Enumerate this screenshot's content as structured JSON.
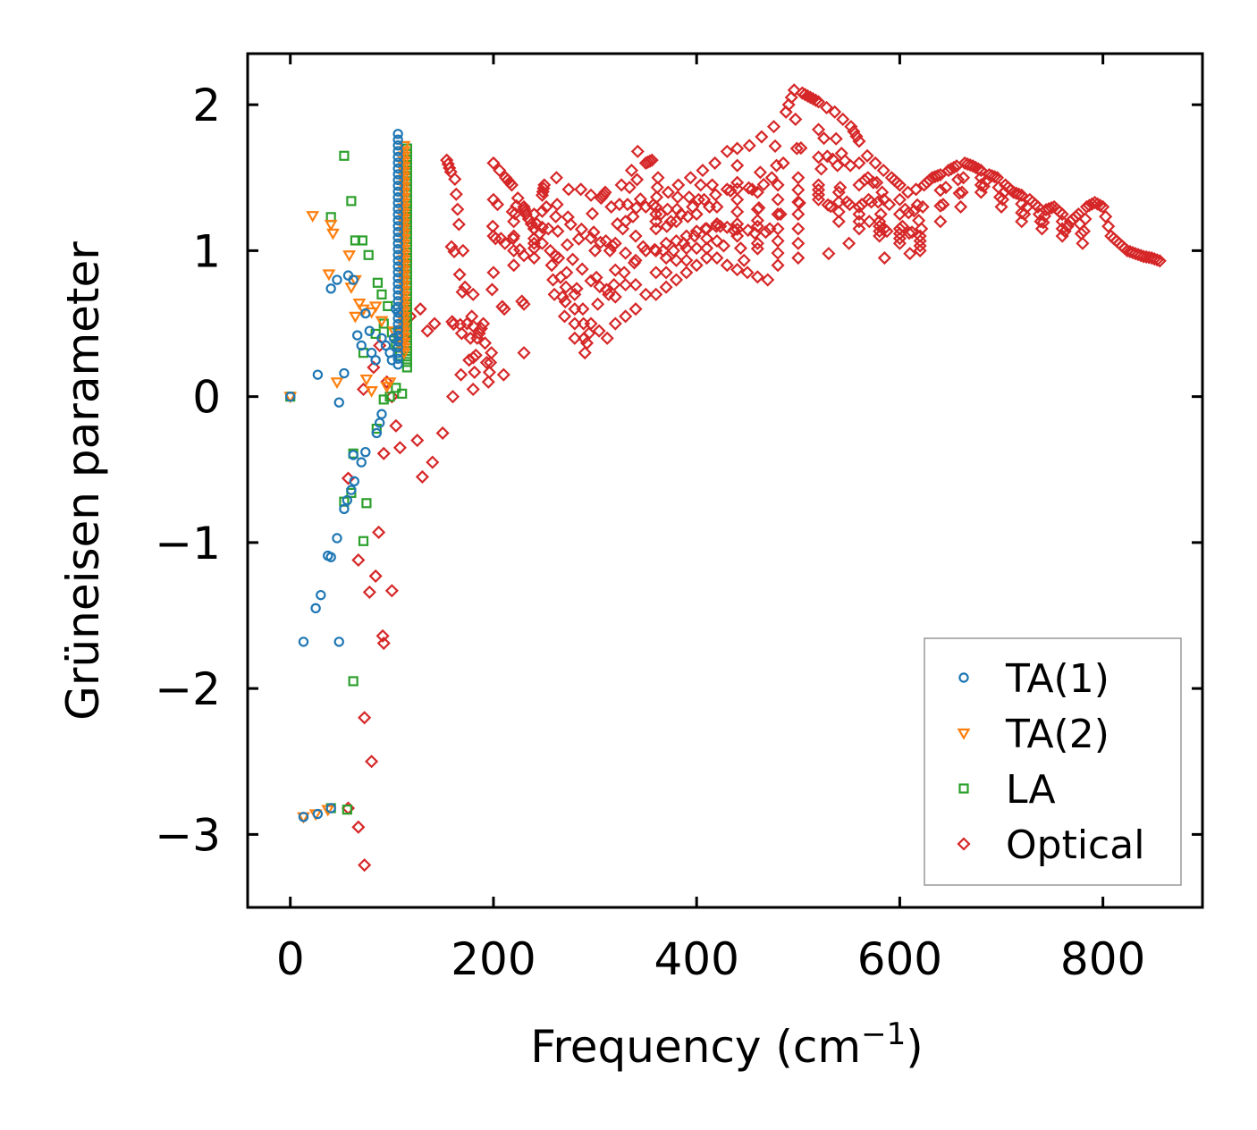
{
  "chart_data": {
    "type": "scatter",
    "title": "",
    "xlabel": "Frequency (cm",
    "xlabel_sup": "−1",
    "xlabel_close": ")",
    "ylabel": "Grüneisen parameter",
    "xlim": [
      -42,
      898
    ],
    "ylim": [
      -3.5,
      2.35
    ],
    "xticks": [
      0,
      200,
      400,
      600,
      800
    ],
    "yticks": [
      2,
      1,
      0,
      -1,
      -2,
      -3
    ],
    "xtick_labels": [
      "0",
      "200",
      "400",
      "600",
      "800"
    ],
    "ytick_labels": [
      "2",
      "1",
      "0",
      "−1",
      "−2",
      "−3"
    ],
    "legend_position": "lower-right",
    "series": [
      {
        "name": "TA(1)",
        "color": "#1f77b4",
        "marker": "circle",
        "points": [
          [
            0,
            0
          ],
          [
            13,
            -2.88
          ],
          [
            27,
            -2.86
          ],
          [
            40,
            -2.82
          ],
          [
            13,
            -1.68
          ],
          [
            25,
            -1.45
          ],
          [
            30,
            -1.36
          ],
          [
            48,
            -1.68
          ],
          [
            37,
            -1.09
          ],
          [
            40,
            -1.1
          ],
          [
            46,
            -0.97
          ],
          [
            53,
            -0.77
          ],
          [
            56,
            -0.71
          ],
          [
            60,
            -0.64
          ],
          [
            63,
            -0.58
          ],
          [
            62,
            -0.4
          ],
          [
            70,
            -0.45
          ],
          [
            74,
            -0.38
          ],
          [
            85,
            -0.25
          ],
          [
            88,
            -0.18
          ],
          [
            90,
            -0.12
          ],
          [
            48,
            -0.04
          ],
          [
            27,
            0.15
          ],
          [
            53,
            0.16
          ],
          [
            40,
            0.74
          ],
          [
            46,
            0.8
          ],
          [
            62,
            0.8
          ],
          [
            57,
            0.83
          ],
          [
            66,
            0.42
          ],
          [
            70,
            0.35
          ],
          [
            74,
            0.57
          ],
          [
            78,
            0.45
          ],
          [
            80,
            0.3
          ],
          [
            84,
            0.25
          ],
          [
            90,
            0.4
          ],
          [
            94,
            0.35
          ],
          [
            98,
            0.3
          ],
          [
            100,
            0.25
          ],
          [
            102,
            0.4
          ],
          [
            104,
            0.6
          ]
        ],
        "stem": {
          "x": 106,
          "y_min": 0.22,
          "y_max": 1.8
        }
      },
      {
        "name": "TA(2)",
        "color": "#ff7f0e",
        "marker": "triangle-down",
        "points": [
          [
            0,
            0
          ],
          [
            13,
            -2.88
          ],
          [
            25,
            -2.86
          ],
          [
            37,
            -2.83
          ],
          [
            22,
            1.24
          ],
          [
            40,
            1.18
          ],
          [
            42,
            1.12
          ],
          [
            38,
            0.84
          ],
          [
            58,
            0.97
          ],
          [
            60,
            0.75
          ],
          [
            64,
            0.8
          ],
          [
            68,
            0.64
          ],
          [
            72,
            0.6
          ],
          [
            64,
            0.55
          ],
          [
            80,
            0.58
          ],
          [
            84,
            0.62
          ],
          [
            90,
            0.52
          ],
          [
            46,
            0.1
          ],
          [
            75,
            0.12
          ],
          [
            80,
            0.04
          ],
          [
            95,
            0.07
          ],
          [
            98,
            0.1
          ],
          [
            102,
            0.45
          ],
          [
            108,
            0.35
          ]
        ],
        "stem": {
          "x": 112,
          "y_min": 0.3,
          "y_max": 1.72
        }
      },
      {
        "name": "LA",
        "color": "#2ca02c",
        "marker": "square",
        "points": [
          [
            0,
            0
          ],
          [
            40,
            -2.82
          ],
          [
            56,
            -2.83
          ],
          [
            62,
            -1.95
          ],
          [
            72,
            -0.99
          ],
          [
            75,
            -0.73
          ],
          [
            53,
            -0.72
          ],
          [
            60,
            -0.66
          ],
          [
            62,
            -0.39
          ],
          [
            85,
            -0.22
          ],
          [
            92,
            -0.02
          ],
          [
            98,
            0.0
          ],
          [
            104,
            0.06
          ],
          [
            110,
            0.02
          ],
          [
            53,
            1.65
          ],
          [
            60,
            1.34
          ],
          [
            40,
            1.23
          ],
          [
            64,
            1.07
          ],
          [
            71,
            1.07
          ],
          [
            77,
            0.97
          ],
          [
            86,
            0.78
          ],
          [
            90,
            0.7
          ],
          [
            72,
            0.3
          ],
          [
            84,
            0.43
          ],
          [
            92,
            0.5
          ],
          [
            96,
            0.62
          ],
          [
            100,
            0.44
          ],
          [
            104,
            0.36
          ],
          [
            108,
            0.28
          ],
          [
            112,
            0.5
          ]
        ],
        "stem": {
          "x": 115,
          "y_min": 0.2,
          "y_max": 1.7
        }
      },
      {
        "name": "Optical",
        "color": "#d62728",
        "marker": "diamond",
        "points": [
          [
            57,
            -2.82
          ],
          [
            67,
            -2.95
          ],
          [
            73,
            -3.21
          ],
          [
            73,
            -2.2
          ],
          [
            80,
            -2.5
          ],
          [
            67,
            -1.12
          ],
          [
            78,
            -1.34
          ],
          [
            84,
            -1.23
          ],
          [
            100,
            -1.33
          ],
          [
            91,
            -1.64
          ],
          [
            92,
            -1.69
          ],
          [
            87,
            -0.93
          ],
          [
            57,
            -0.56
          ],
          [
            92,
            -0.39
          ],
          [
            72,
            0.05
          ],
          [
            82,
            0.2
          ],
          [
            88,
            0.35
          ],
          [
            95,
            0.1
          ],
          [
            100,
            0.0
          ],
          [
            104,
            -0.2
          ],
          [
            108,
            -0.35
          ],
          [
            112,
            0.4
          ],
          [
            118,
            0.55
          ],
          [
            128,
            0.6
          ],
          [
            135,
            0.45
          ],
          [
            142,
            0.5
          ],
          [
            125,
            -0.3
          ],
          [
            130,
            -0.55
          ],
          [
            140,
            -0.45
          ],
          [
            150,
            -0.25
          ],
          [
            160,
            0.0
          ],
          [
            168,
            0.15
          ],
          [
            176,
            0.25
          ],
          [
            184,
            0.4
          ],
          [
            154,
            1.62
          ],
          [
            158,
            1.54
          ],
          [
            162,
            1.49
          ],
          [
            166,
            1.18
          ],
          [
            170,
            1.0
          ],
          [
            180,
            0.7
          ],
          [
            190,
            0.5
          ],
          [
            198,
            0.3
          ],
          [
            200,
            1.6
          ],
          [
            206,
            1.55
          ],
          [
            212,
            1.5
          ],
          [
            218,
            1.45
          ],
          [
            224,
            1.36
          ],
          [
            232,
            1.25
          ],
          [
            240,
            1.15
          ],
          [
            248,
            1.05
          ],
          [
            256,
            1.0
          ],
          [
            264,
            0.95
          ],
          [
            272,
            0.85
          ],
          [
            280,
            0.7
          ],
          [
            288,
            0.6
          ],
          [
            296,
            0.5
          ],
          [
            304,
            0.45
          ],
          [
            312,
            0.4
          ],
          [
            320,
            0.5
          ],
          [
            330,
            0.55
          ],
          [
            340,
            0.6
          ],
          [
            350,
            0.7
          ],
          [
            360,
            0.7
          ],
          [
            370,
            0.75
          ],
          [
            380,
            0.8
          ],
          [
            390,
            0.85
          ],
          [
            400,
            0.9
          ],
          [
            410,
            0.95
          ],
          [
            420,
            0.95
          ],
          [
            430,
            0.9
          ],
          [
            440,
            0.87
          ],
          [
            450,
            0.85
          ],
          [
            460,
            0.82
          ],
          [
            470,
            0.8
          ],
          [
            250,
            1.45
          ],
          [
            262,
            1.5
          ],
          [
            274,
            1.42
          ],
          [
            286,
            1.42
          ],
          [
            296,
            1.38
          ],
          [
            306,
            1.36
          ],
          [
            316,
            1.3
          ],
          [
            326,
            1.45
          ],
          [
            336,
            1.55
          ],
          [
            342,
            1.68
          ],
          [
            350,
            1.6
          ],
          [
            356,
            1.62
          ],
          [
            362,
            1.5
          ],
          [
            372,
            1.4
          ],
          [
            382,
            1.45
          ],
          [
            394,
            1.5
          ],
          [
            406,
            1.55
          ],
          [
            418,
            1.6
          ],
          [
            430,
            1.68
          ],
          [
            440,
            1.7
          ],
          [
            452,
            1.72
          ],
          [
            464,
            1.78
          ],
          [
            476,
            1.85
          ],
          [
            488,
            1.95
          ],
          [
            496,
            2.1
          ],
          [
            504,
            2.08
          ],
          [
            512,
            2.05
          ],
          [
            520,
            2.02
          ],
          [
            528,
            1.98
          ],
          [
            536,
            1.95
          ],
          [
            544,
            1.9
          ],
          [
            552,
            1.85
          ],
          [
            560,
            1.75
          ],
          [
            568,
            1.65
          ],
          [
            576,
            1.6
          ],
          [
            584,
            1.55
          ],
          [
            592,
            1.5
          ],
          [
            600,
            1.45
          ],
          [
            608,
            1.4
          ],
          [
            616,
            1.42
          ],
          [
            624,
            1.45
          ],
          [
            632,
            1.5
          ],
          [
            640,
            1.52
          ],
          [
            648,
            1.55
          ],
          [
            656,
            1.58
          ],
          [
            664,
            1.6
          ],
          [
            672,
            1.58
          ],
          [
            680,
            1.55
          ],
          [
            688,
            1.52
          ],
          [
            696,
            1.5
          ],
          [
            704,
            1.45
          ],
          [
            712,
            1.4
          ],
          [
            720,
            1.38
          ],
          [
            728,
            1.35
          ],
          [
            736,
            1.3
          ],
          [
            744,
            1.28
          ],
          [
            752,
            1.3
          ],
          [
            760,
            1.25
          ],
          [
            768,
            1.2
          ],
          [
            776,
            1.25
          ],
          [
            784,
            1.3
          ],
          [
            792,
            1.33
          ],
          [
            800,
            1.3
          ],
          [
            808,
            1.1
          ],
          [
            816,
            1.05
          ],
          [
            824,
            1.0
          ],
          [
            832,
            0.98
          ],
          [
            840,
            0.96
          ],
          [
            848,
            0.95
          ],
          [
            856,
            0.93
          ],
          [
            300,
            1.0
          ],
          [
            320,
            1.05
          ],
          [
            340,
            1.1
          ],
          [
            360,
            1.15
          ],
          [
            380,
            1.2
          ],
          [
            400,
            1.25
          ],
          [
            420,
            1.3
          ],
          [
            440,
            1.35
          ],
          [
            460,
            1.4
          ],
          [
            480,
            1.45
          ],
          [
            500,
            1.5
          ],
          [
            520,
            1.45
          ],
          [
            540,
            1.4
          ],
          [
            560,
            1.3
          ],
          [
            580,
            1.2
          ],
          [
            600,
            1.15
          ],
          [
            620,
            1.1
          ],
          [
            640,
            1.2
          ],
          [
            660,
            1.3
          ],
          [
            680,
            1.4
          ],
          [
            700,
            1.3
          ],
          [
            720,
            1.2
          ],
          [
            740,
            1.15
          ],
          [
            760,
            1.1
          ],
          [
            780,
            1.05
          ],
          [
            200,
            0.85
          ],
          [
            220,
            0.9
          ],
          [
            240,
            0.95
          ],
          [
            260,
            0.7
          ],
          [
            270,
            0.55
          ],
          [
            280,
            0.4
          ],
          [
            290,
            0.3
          ],
          [
            230,
            0.3
          ],
          [
            210,
            0.15
          ],
          [
            195,
            0.1
          ],
          [
            180,
            0.05
          ],
          [
            440,
            1.1
          ],
          [
            460,
            1.05
          ],
          [
            480,
            1.15
          ],
          [
            500,
            1.25
          ],
          [
            520,
            1.35
          ],
          [
            540,
            1.2
          ],
          [
            560,
            1.15
          ],
          [
            580,
            1.1
          ],
          [
            600,
            1.05
          ],
          [
            620,
            1.0
          ],
          [
            500,
            0.95
          ],
          [
            480,
            0.9
          ],
          [
            530,
            0.98
          ],
          [
            550,
            1.05
          ],
          [
            570,
            1.2
          ],
          [
            585,
            0.95
          ],
          [
            610,
            0.98
          ],
          [
            230,
            1.3
          ],
          [
            240,
            1.25
          ],
          [
            248,
            1.38
          ],
          [
            220,
            1.2
          ],
          [
            310,
            1.4
          ],
          [
            330,
            1.2
          ],
          [
            360,
            1.3
          ],
          [
            370,
            1.05
          ],
          [
            390,
            1.1
          ],
          [
            410,
            1.15
          ]
        ]
      }
    ]
  }
}
